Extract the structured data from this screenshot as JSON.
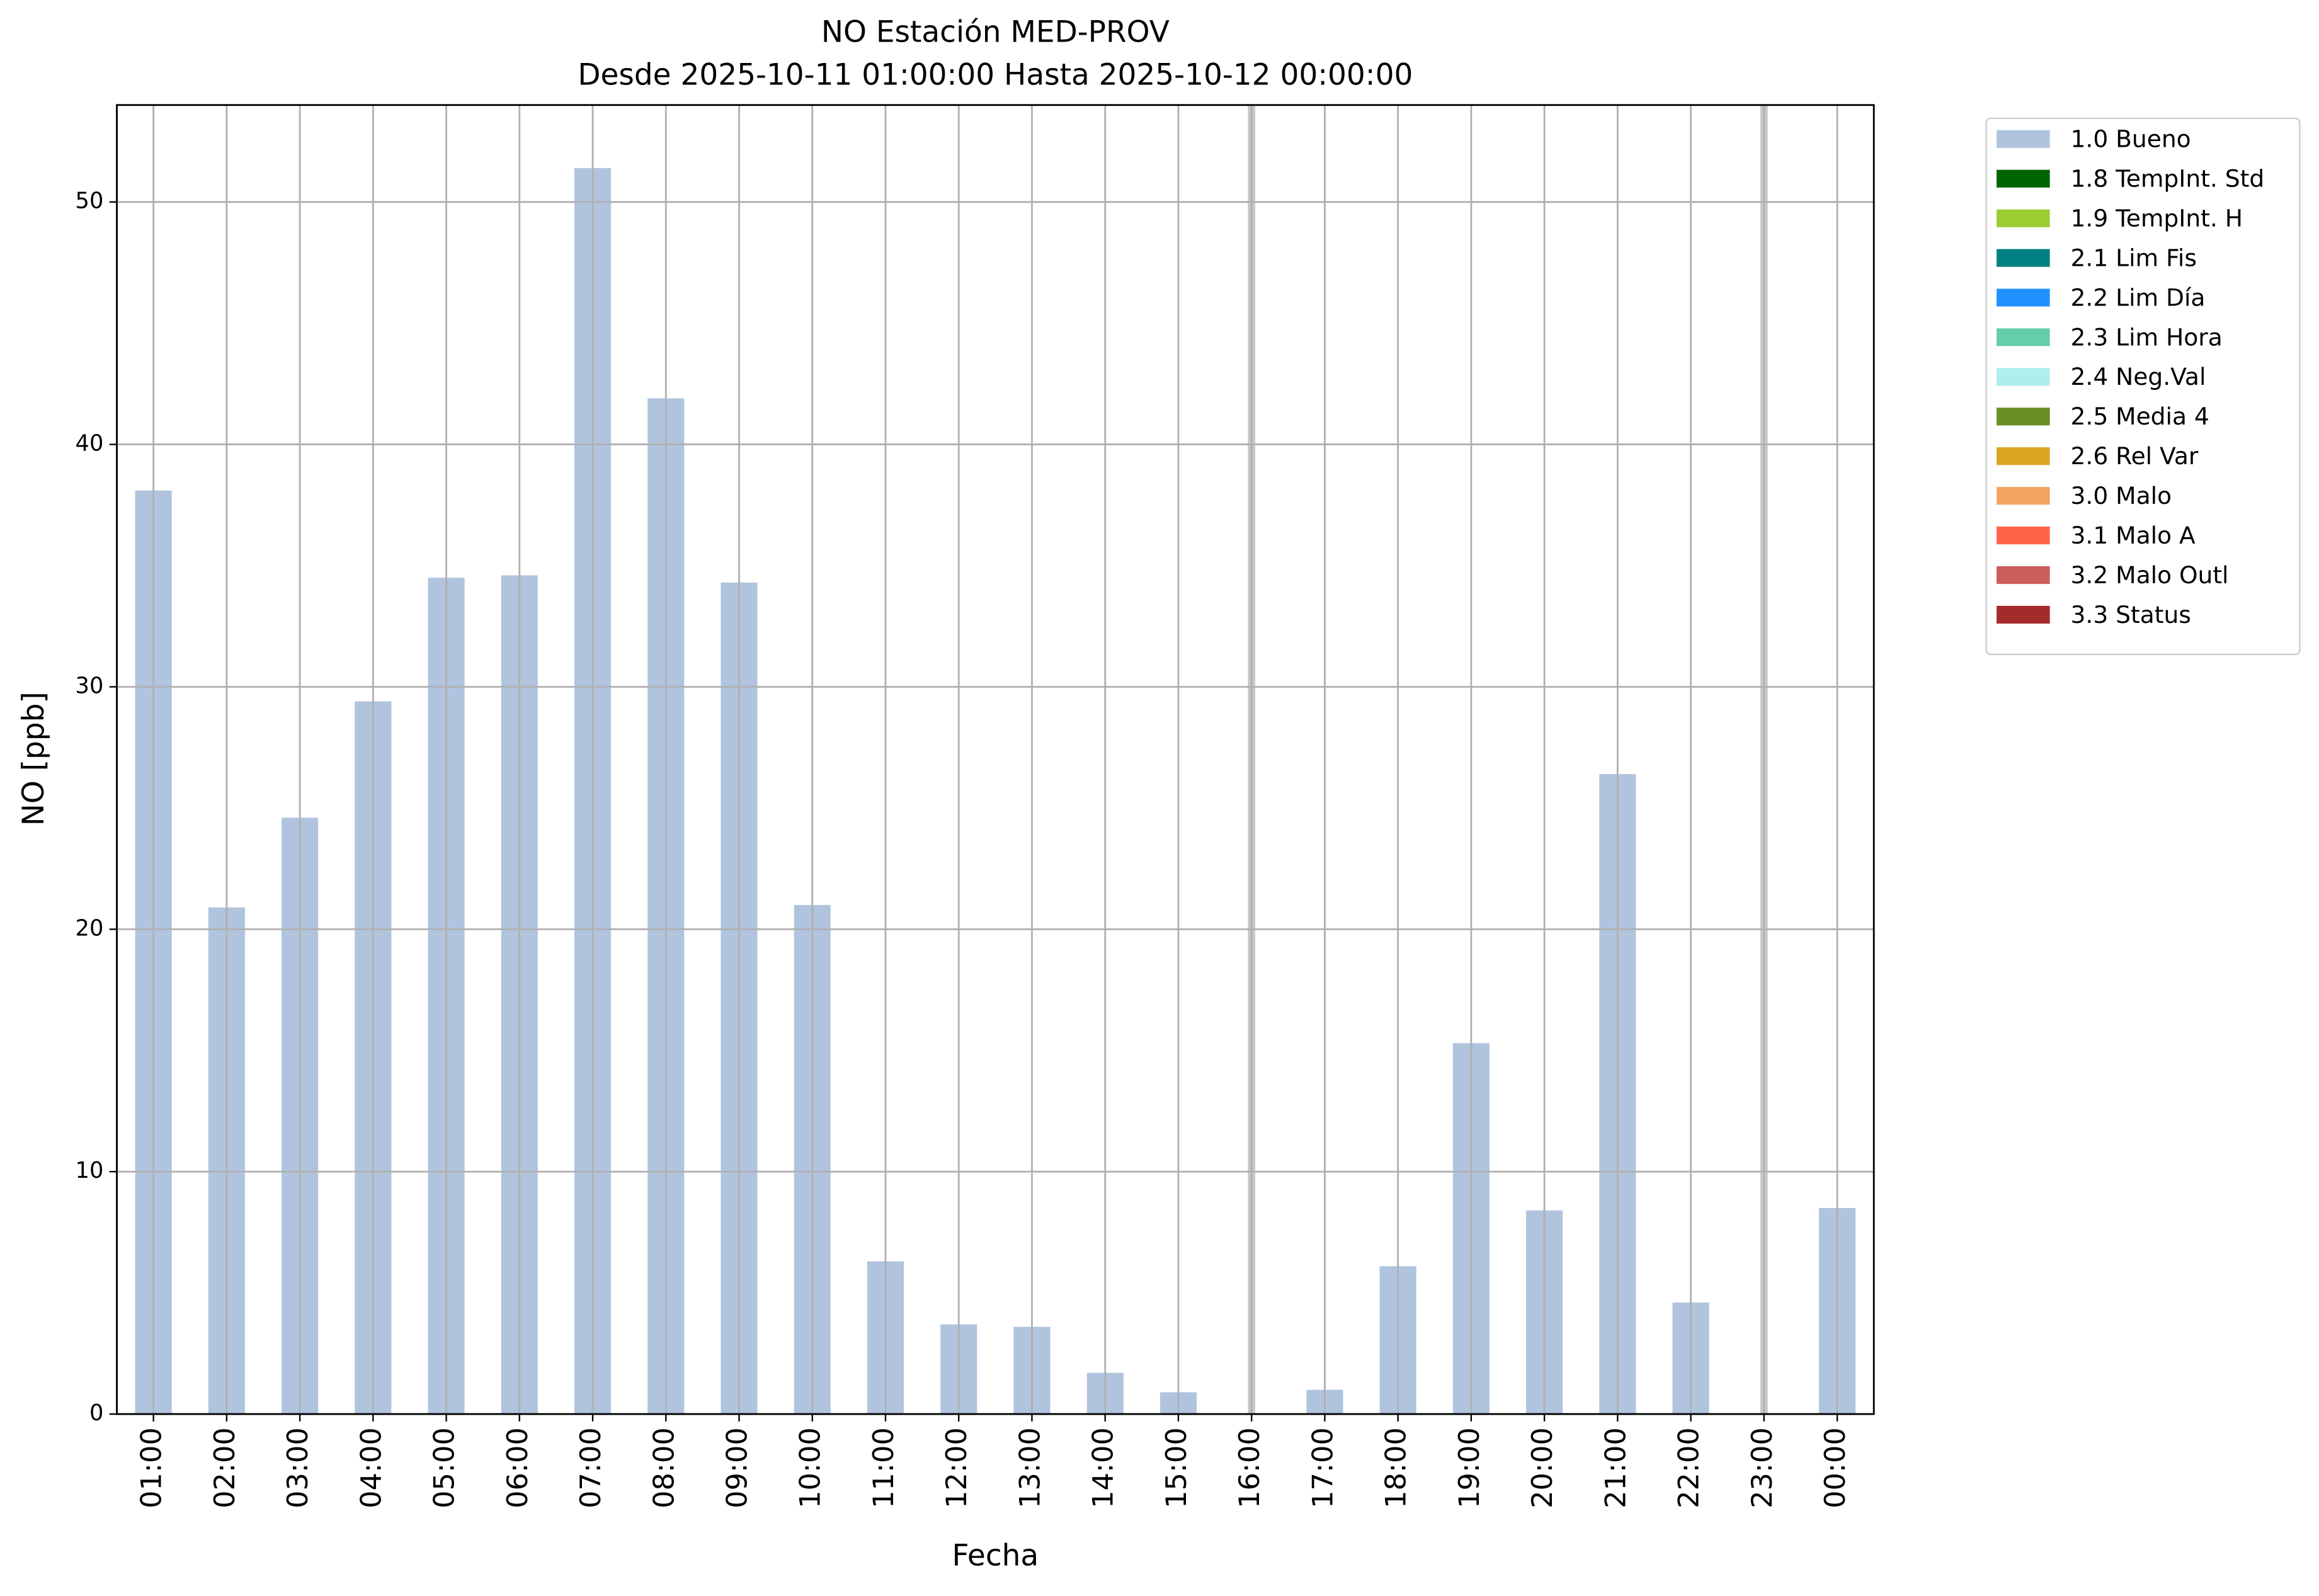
{
  "chart_data": {
    "type": "bar",
    "title": "NO Estación MED-PROV",
    "subtitle": "Desde 2025-10-11 01:00:00 Hasta 2025-10-12 00:00:00",
    "x_label": "Fecha",
    "y_label": "NO [ppb]",
    "categories": [
      "01:00",
      "02:00",
      "03:00",
      "04:00",
      "05:00",
      "06:00",
      "07:00",
      "08:00",
      "09:00",
      "10:00",
      "11:00",
      "12:00",
      "13:00",
      "14:00",
      "15:00",
      "16:00",
      "17:00",
      "18:00",
      "19:00",
      "20:00",
      "21:00",
      "22:00",
      "23:00",
      "00:00"
    ],
    "series": [
      {
        "name": "1.0 Bueno",
        "color": "#b0c4de",
        "values": [
          38.1,
          20.9,
          24.6,
          29.4,
          34.5,
          34.6,
          51.4,
          41.9,
          34.3,
          21.0,
          6.3,
          3.7,
          3.6,
          1.7,
          0.9,
          null,
          1.0,
          6.1,
          15.3,
          8.4,
          26.4,
          4.6,
          null,
          8.5
        ]
      }
    ],
    "legend_only": [
      {
        "name": "1.8 TempInt. Std",
        "color": "#006400"
      },
      {
        "name": "1.9 TempInt. H",
        "color": "#9acd32"
      },
      {
        "name": "2.1 Lim Fis",
        "color": "#008080"
      },
      {
        "name": "2.2 Lim Día",
        "color": "#1e90ff"
      },
      {
        "name": "2.3 Lim Hora",
        "color": "#66cdaa"
      },
      {
        "name": "2.4 Neg.Val",
        "color": "#afeeee"
      },
      {
        "name": "2.5 Media 4",
        "color": "#6b8e23"
      },
      {
        "name": "2.6 Rel Var",
        "color": "#daa520"
      },
      {
        "name": "3.0 Malo",
        "color": "#f4a460"
      },
      {
        "name": "3.1 Malo A",
        "color": "#ff6347"
      },
      {
        "name": "3.2 Malo Outl",
        "color": "#cd5c5c"
      },
      {
        "name": "3.3 Status",
        "color": "#a52a2a"
      }
    ],
    "ylim": [
      0,
      54
    ],
    "yticks": [
      0,
      10,
      20,
      30,
      40,
      50
    ],
    "grid": true,
    "legend": "outside-upper-right"
  }
}
